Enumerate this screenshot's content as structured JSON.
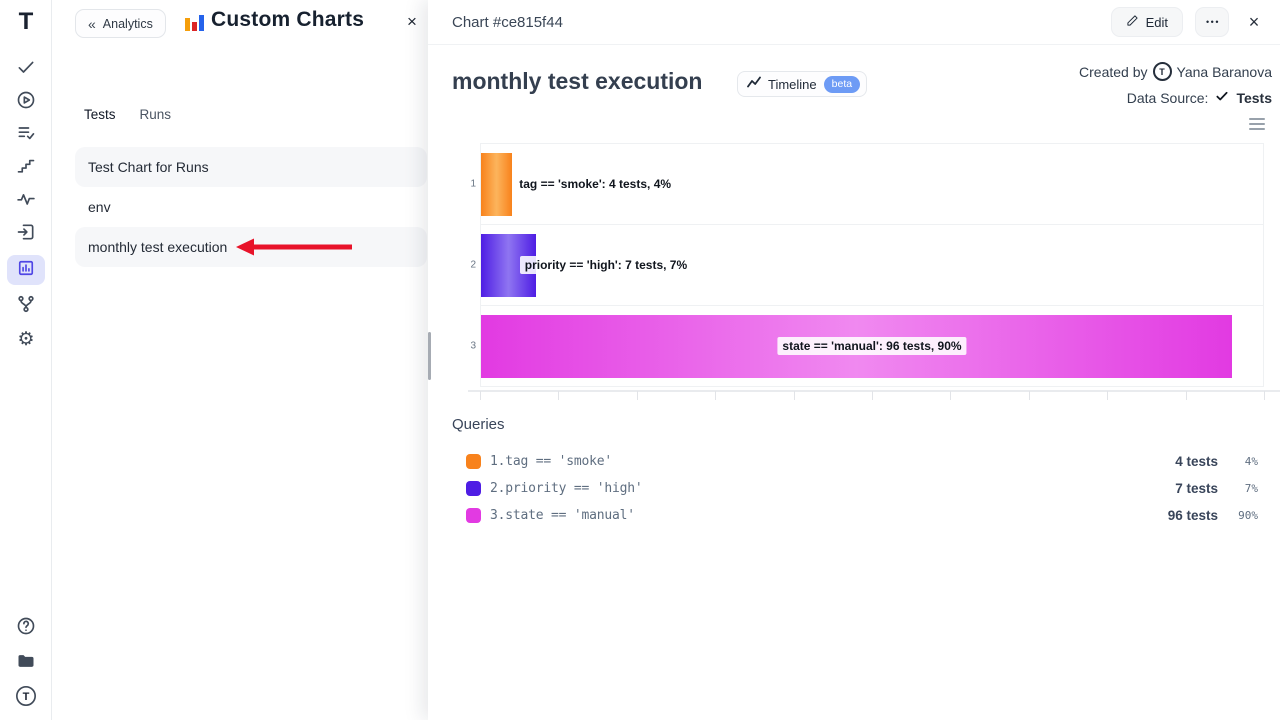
{
  "colors": {
    "active_icon": "#4f46e5",
    "active_icon_bg": "#e0e3fb",
    "beta_badge": "#6d9bf5",
    "arrow_red": "#e8132a"
  },
  "sidebar": {
    "logo_letter": "T",
    "items": [
      {
        "name": "tests",
        "icon": "check-icon",
        "active": false
      },
      {
        "name": "runs",
        "icon": "play-circle-icon",
        "active": false
      },
      {
        "name": "plans",
        "icon": "list-check-icon",
        "active": false
      },
      {
        "name": "milestones",
        "icon": "steps-icon",
        "active": false
      },
      {
        "name": "pulse",
        "icon": "activity-icon",
        "active": false
      },
      {
        "name": "imports",
        "icon": "import-icon",
        "active": false
      },
      {
        "name": "analytics",
        "icon": "bar-chart-icon",
        "active": true
      },
      {
        "name": "branches",
        "icon": "branch-icon",
        "active": false
      },
      {
        "name": "settings",
        "icon": "gear-icon",
        "active": false
      }
    ],
    "bottom_items": [
      {
        "name": "help",
        "icon": "question-circle-icon"
      },
      {
        "name": "projects",
        "icon": "folder-icon"
      },
      {
        "name": "account",
        "icon": "logo-circle-icon"
      }
    ]
  },
  "panel": {
    "back_label": "Analytics",
    "title": "Custom Charts",
    "close_label": "×",
    "tabs": [
      {
        "label": "Tests",
        "active": true
      },
      {
        "label": "Runs",
        "active": false
      }
    ],
    "items": [
      {
        "label": "Test Chart for Runs"
      },
      {
        "label": "env"
      },
      {
        "label": "monthly test execution",
        "annotated": true
      }
    ],
    "annotation": {
      "type": "arrow-left",
      "color": "#e8132a"
    }
  },
  "drawer": {
    "header": {
      "title": "Chart #ce815f44",
      "edit_label": "Edit",
      "more_label": "•••",
      "close_label": "×"
    },
    "chart_meta": {
      "title": "monthly test execution",
      "type_label": "Timeline",
      "beta_label": "beta",
      "created_by_label": "Created by",
      "author": "Yana Baranova",
      "author_initial": "T",
      "data_source_label": "Data Source:",
      "data_source_value": "Tests"
    },
    "queries_title": "Queries",
    "queries": [
      {
        "index": "1.",
        "query": "tag == 'smoke'",
        "tests": "4 tests",
        "percent": "4%",
        "color": "#f8821c",
        "color_light": "#fcb45c"
      },
      {
        "index": "2.",
        "query": "priority == 'high'",
        "tests": "7 tests",
        "percent": "7%",
        "color": "#4e1de4",
        "color_light": "#8f75f1"
      },
      {
        "index": "3.",
        "query": "state == 'manual'",
        "tests": "96 tests",
        "percent": "90%",
        "color": "#e23ae2",
        "color_light": "#f089f0"
      }
    ]
  },
  "chart_data": {
    "type": "bar",
    "orientation": "horizontal",
    "title": "monthly test execution",
    "categories": [
      "1",
      "2",
      "3"
    ],
    "values": [
      4,
      7,
      96
    ],
    "value_unit": "tests",
    "percentages": [
      4,
      7,
      90
    ],
    "bar_labels": [
      "tag == 'smoke': 4 tests, 4%",
      "priority == 'high': 7 tests, 7%",
      "state == 'manual': 96 tests, 90%"
    ],
    "series": [
      {
        "name": "tag == 'smoke'",
        "values": [
          4
        ]
      },
      {
        "name": "priority == 'high'",
        "values": [
          7
        ]
      },
      {
        "name": "state == 'manual'",
        "values": [
          96
        ]
      }
    ],
    "xlim": [
      0,
      100
    ],
    "grid": false,
    "axis_tick_count": 11,
    "legend_position": "below"
  }
}
